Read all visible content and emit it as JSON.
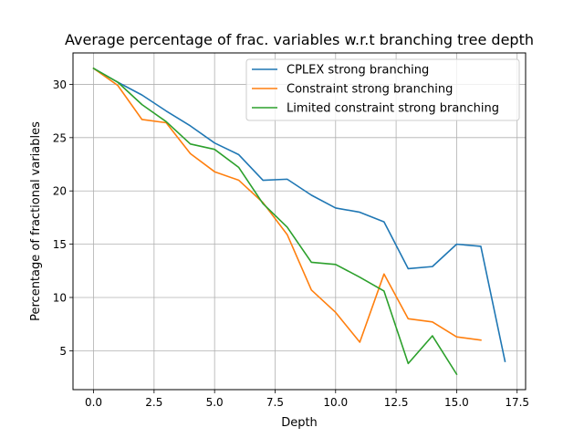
{
  "chart_data": {
    "type": "line",
    "title": "Average percentage of frac. variables w.r.t branching tree depth",
    "xlabel": "Depth",
    "ylabel": "Percentage of fractional variables",
    "xlim": [
      -0.85,
      17.85
    ],
    "ylim": [
      1.35,
      32.95
    ],
    "x_ticks": [
      0.0,
      2.5,
      5.0,
      7.5,
      10.0,
      12.5,
      15.0,
      17.5
    ],
    "x_tick_labels": [
      "0.0",
      "2.5",
      "5.0",
      "7.5",
      "10.0",
      "12.5",
      "15.0",
      "17.5"
    ],
    "y_ticks": [
      5,
      10,
      15,
      20,
      25,
      30
    ],
    "y_tick_labels": [
      "5",
      "10",
      "15",
      "20",
      "25",
      "30"
    ],
    "grid": true,
    "legend_position": "top-right",
    "series": [
      {
        "name": "CPLEX strong branching",
        "color": "#1f77b4",
        "x": [
          0,
          1,
          2,
          3,
          4,
          5,
          6,
          7,
          8,
          9,
          10,
          11,
          12,
          13,
          14,
          15,
          16,
          17
        ],
        "y": [
          31.5,
          30.2,
          29.0,
          27.5,
          26.1,
          24.5,
          23.4,
          21.0,
          21.1,
          19.6,
          18.4,
          18.0,
          17.1,
          12.7,
          12.9,
          15.0,
          14.8,
          4.0
        ]
      },
      {
        "name": "Constraint strong branching",
        "color": "#ff7f0e",
        "x": [
          0,
          1,
          2,
          3,
          4,
          5,
          6,
          7,
          8,
          9,
          10,
          11,
          12,
          13,
          14,
          15,
          16
        ],
        "y": [
          31.5,
          29.9,
          26.7,
          26.4,
          23.5,
          21.8,
          21.0,
          18.9,
          15.9,
          10.7,
          8.6,
          5.8,
          12.2,
          8.0,
          7.7,
          6.3,
          6.0
        ]
      },
      {
        "name": "Limited constraint strong branching",
        "color": "#2ca02c",
        "x": [
          0,
          1,
          2,
          3,
          4,
          5,
          6,
          7,
          8,
          9,
          10,
          11,
          12,
          13,
          14,
          15
        ],
        "y": [
          31.5,
          30.2,
          28.1,
          26.5,
          24.4,
          23.9,
          22.2,
          18.8,
          16.6,
          13.3,
          13.1,
          11.9,
          10.6,
          3.8,
          6.4,
          2.8
        ]
      }
    ]
  }
}
